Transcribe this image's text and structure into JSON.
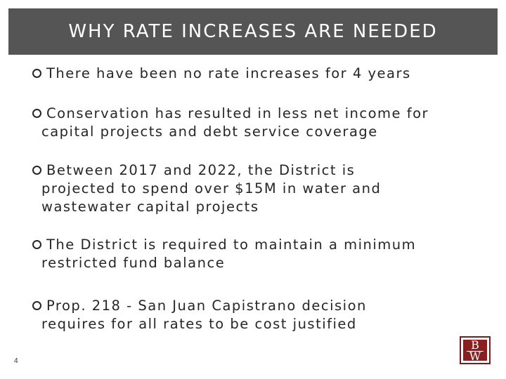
{
  "slide": {
    "title": "WHY RATE INCREASES ARE NEEDED",
    "page_number": "4",
    "accent_color": "#555555",
    "logo_color": "#8b1e1e",
    "logo": {
      "top": "B",
      "bottom": "W"
    },
    "bullets": [
      {
        "icon": "circle-bullet-icon",
        "lines": [
          "There have been no rate increases for 4 years"
        ]
      },
      {
        "icon": "circle-bullet-icon",
        "lines": [
          "Conservation has resulted in less net income for",
          "capital projects and debt service coverage"
        ]
      },
      {
        "icon": "circle-bullet-icon",
        "lines": [
          "Between 2017 and 2022, the District is",
          "projected to spend over $15M in water and",
          "wastewater capital projects"
        ]
      },
      {
        "icon": "circle-bullet-icon",
        "lines": [
          "The District is required to maintain a minimum",
          "restricted fund balance"
        ]
      },
      {
        "icon": "circle-bullet-icon",
        "lines": [
          "Prop. 218 - San Juan Capistrano decision",
          "requires for all rates to be cost justified"
        ]
      }
    ]
  }
}
